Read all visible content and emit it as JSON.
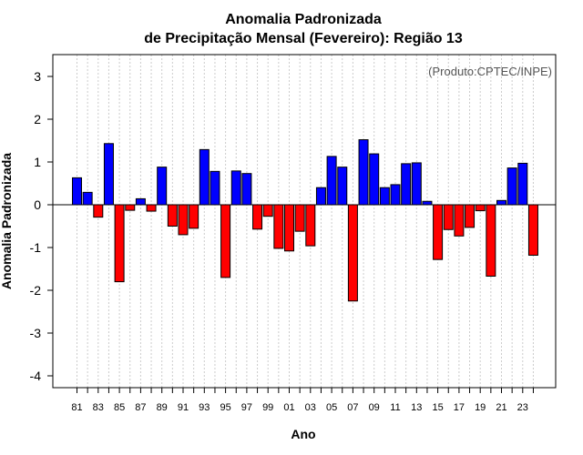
{
  "chart_data": {
    "type": "bar",
    "title": "Anomalia Padronizada",
    "subtitle": "de Precipitação Mensal (Fevereiro): Região 13",
    "xlabel": "Ano",
    "ylabel": "Anomalia Padronizada",
    "annotation": "(Produto:CPTEC/INPE)",
    "ylim": [
      -4.25,
      3.5
    ],
    "yticks": [
      -4,
      -3,
      -2,
      -1,
      0,
      1,
      2,
      3
    ],
    "grid": "vertical-dashed",
    "positive_color": "#0000ff",
    "negative_color": "#ff0000",
    "categories": [
      "81",
      "82",
      "83",
      "84",
      "85",
      "86",
      "87",
      "88",
      "89",
      "90",
      "91",
      "92",
      "93",
      "94",
      "95",
      "96",
      "97",
      "98",
      "99",
      "00",
      "01",
      "02",
      "03",
      "04",
      "05",
      "06",
      "07",
      "08",
      "09",
      "10",
      "11",
      "12",
      "13",
      "14",
      "15",
      "16",
      "17",
      "18",
      "19",
      "20",
      "21",
      "22",
      "23",
      "24"
    ],
    "xtick_labels": [
      "81",
      "83",
      "85",
      "87",
      "89",
      "91",
      "93",
      "95",
      "97",
      "99",
      "01",
      "03",
      "05",
      "07",
      "09",
      "11",
      "13",
      "15",
      "17",
      "19",
      "21",
      "23"
    ],
    "values": [
      0.63,
      0.29,
      -0.29,
      1.43,
      -1.8,
      -0.13,
      0.14,
      -0.15,
      0.88,
      -0.5,
      -0.7,
      -0.55,
      1.29,
      0.78,
      -1.7,
      0.79,
      0.73,
      -0.57,
      -0.27,
      -1.02,
      -1.08,
      -0.62,
      -0.96,
      0.4,
      1.13,
      0.88,
      -2.25,
      1.52,
      1.19,
      0.4,
      0.47,
      0.96,
      0.98,
      0.08,
      -1.28,
      -0.58,
      -0.73,
      -0.53,
      -0.14,
      -1.67,
      0.1,
      0.86,
      0.97,
      -1.18
    ]
  }
}
